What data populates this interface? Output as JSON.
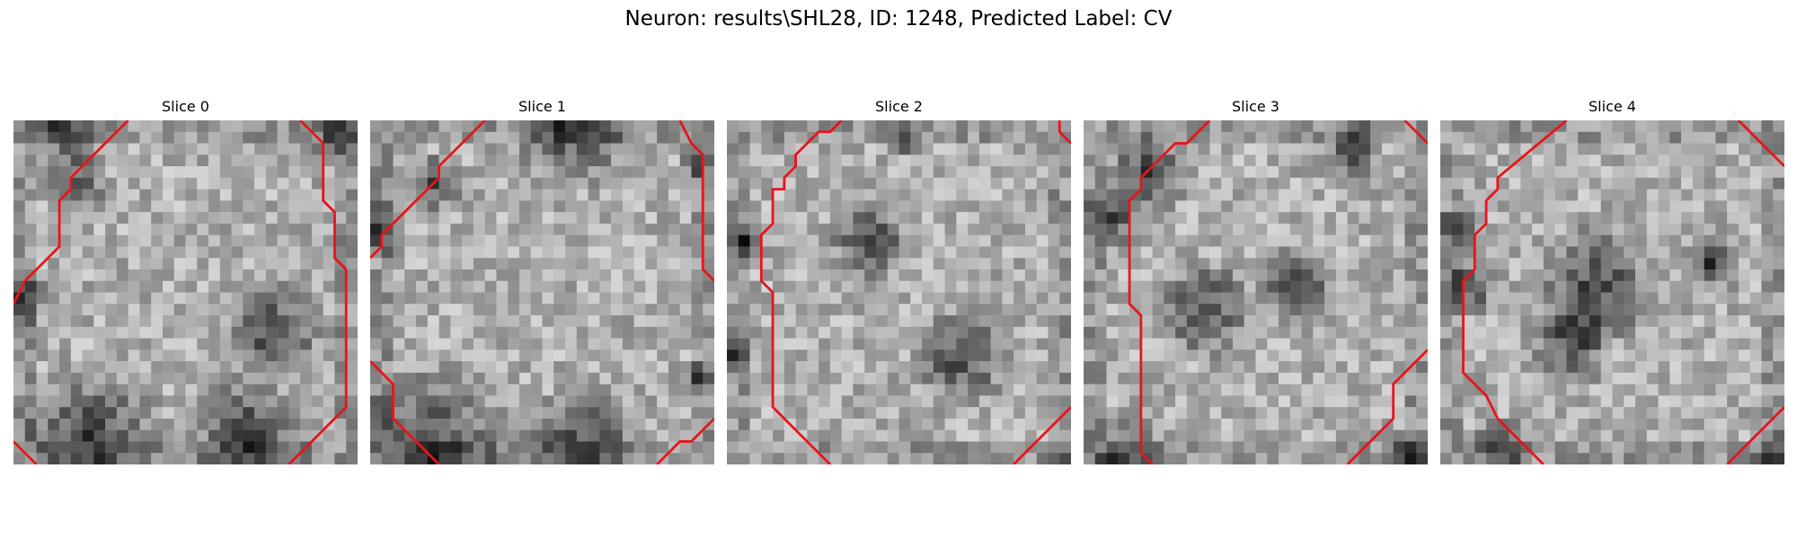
{
  "figure": {
    "title": "Neuron: results\\SHL28, ID: 1248, Predicted Label: CV"
  },
  "panels": [
    {
      "title": "Slice 0"
    },
    {
      "title": "Slice 1"
    },
    {
      "title": "Slice 2"
    },
    {
      "title": "Slice 3"
    },
    {
      "title": "Slice 4"
    }
  ],
  "colors": {
    "contour": "#e8141b",
    "background": "#ffffff"
  }
}
